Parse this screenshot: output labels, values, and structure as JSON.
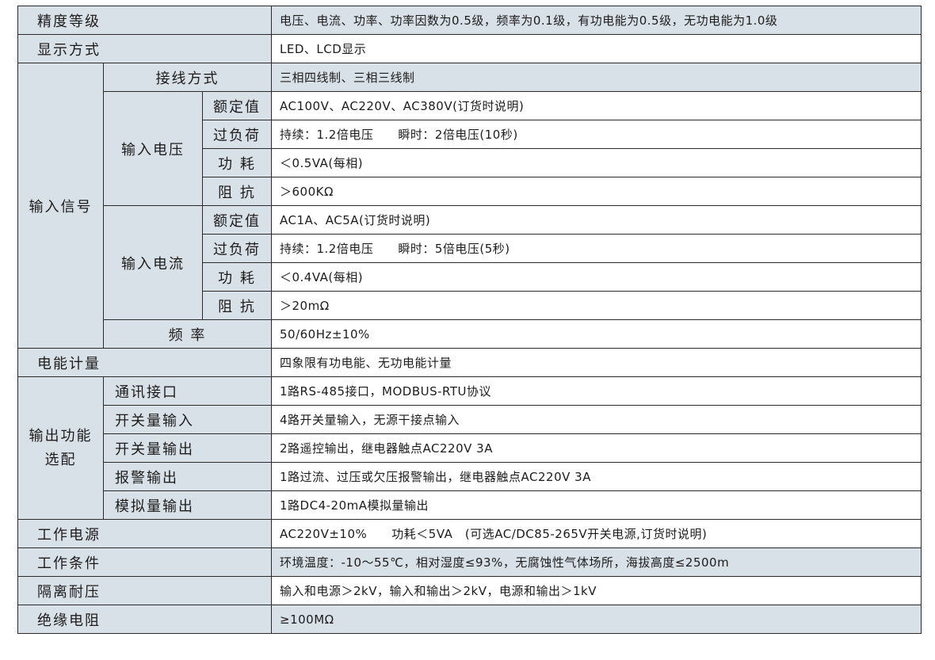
{
  "rows": {
    "accuracy": {
      "label": "精度等级",
      "value": "电压、电流、功率、功率因数为0.5级，频率为0.1级，有功电能为0.5级，无功电能为1.0级"
    },
    "display": {
      "label": "显示方式",
      "value": "LED、LCD显示"
    },
    "input_signal": {
      "label": "输入信号",
      "wiring": {
        "label": "接线方式",
        "value": "三相四线制、三相三线制"
      },
      "voltage": {
        "label": "输入电压",
        "rated": {
          "label": "额定值",
          "value": "AC100V、AC220V、AC380V(订货时说明)"
        },
        "overload": {
          "label": "过负荷",
          "value": "持续：1.2倍电压　　瞬时：2倍电压(10秒)"
        },
        "power": {
          "label": "功 耗",
          "value": "＜0.5VA(每相)"
        },
        "impedance": {
          "label": "阻 抗",
          "value": "＞600KΩ"
        }
      },
      "current": {
        "label": "输入电流",
        "rated": {
          "label": "额定值",
          "value": "AC1A、AC5A(订货时说明)"
        },
        "overload": {
          "label": "过负荷",
          "value": "持续：1.2倍电压　　瞬时：5倍电压(5秒)"
        },
        "power": {
          "label": "功 耗",
          "value": "＜0.4VA(每相)"
        },
        "impedance": {
          "label": "阻 抗",
          "value": "＞20mΩ"
        }
      },
      "frequency": {
        "label": "频 率",
        "value": "50/60Hz±10%"
      }
    },
    "energy": {
      "label": "电能计量",
      "value": "四象限有功电能、无功电能计量"
    },
    "output": {
      "label_line1": "输出功能",
      "label_line2": "选配",
      "comm": {
        "label": "通讯接口",
        "value": "1路RS-485接口，MODBUS-RTU协议"
      },
      "di": {
        "label": "开关量输入",
        "value": "4路开关量输入，无源干接点输入"
      },
      "do": {
        "label": "开关量输出",
        "value": "2路遥控输出，继电器触点AC220V 3A"
      },
      "alarm": {
        "label": "报警输出",
        "value": "1路过流、过压或欠压报警输出，继电器触点AC220V 3A"
      },
      "analog": {
        "label": "模拟量输出",
        "value": "1路DC4-20mA模拟量输出"
      }
    },
    "power_supply": {
      "label": "工作电源",
      "value": "AC220V±10%　　功耗＜5VA　(可选AC/DC85-265V开关电源,订货时说明)"
    },
    "conditions": {
      "label": "工作条件",
      "value": "环境温度：-10～55℃，相对湿度≤93%，无腐蚀性气体场所，海拔高度≤2500m"
    },
    "isolation": {
      "label": "隔离耐压",
      "value": "输入和电源＞2kV，输入和输出＞2kV，电源和输出＞1kV"
    },
    "insulation": {
      "label": "绝缘电阻",
      "value": "≥100MΩ"
    }
  }
}
